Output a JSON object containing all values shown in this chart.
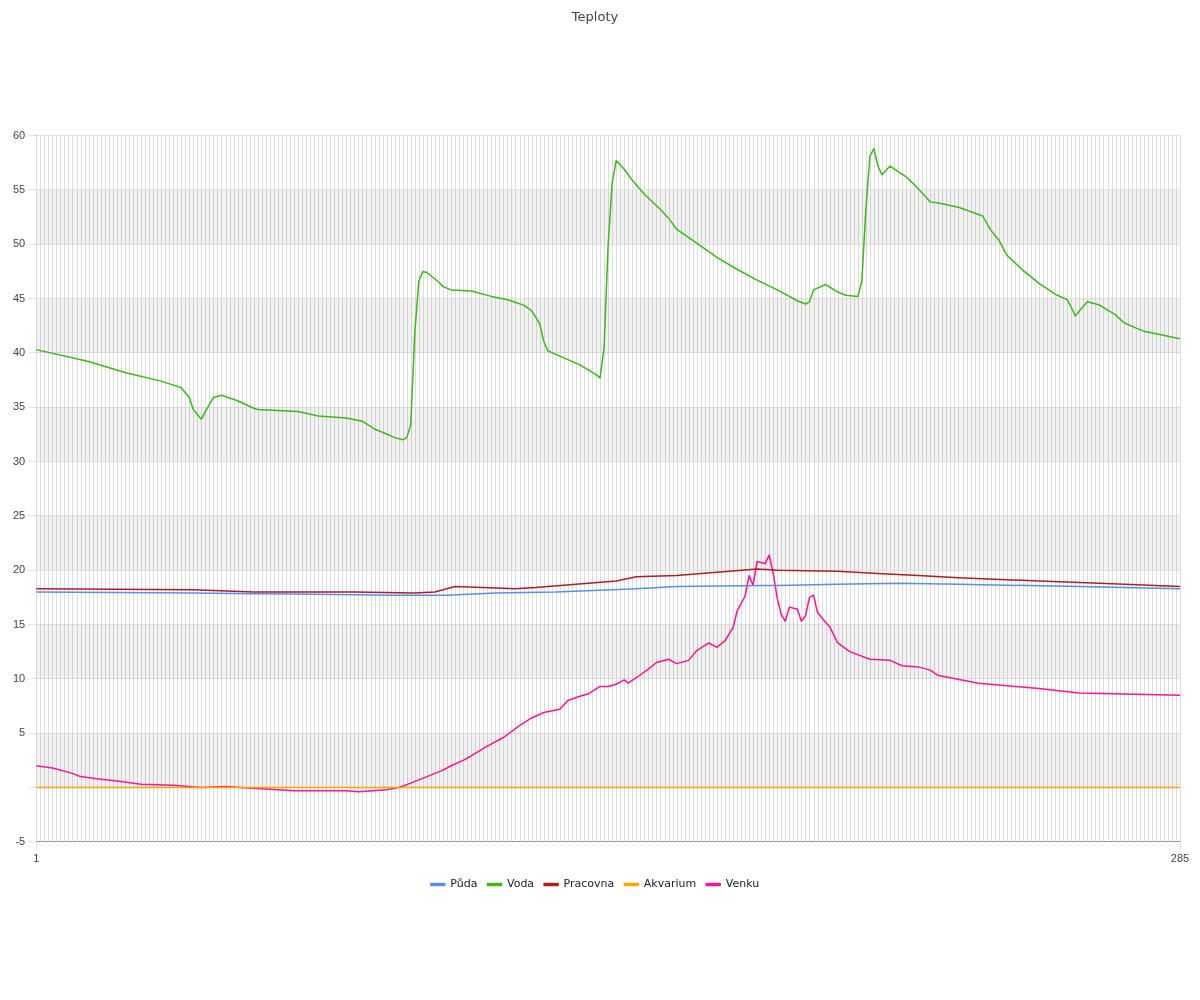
{
  "chart_data": {
    "type": "line",
    "title": "Teploty",
    "xlim": [
      1,
      285
    ],
    "xticks": [
      1,
      285
    ],
    "ylim": [
      -5,
      60
    ],
    "yticks": [
      -5,
      {
        "value": 0,
        "label": null
      },
      5,
      10,
      15,
      20,
      25,
      30,
      35,
      40,
      45,
      50,
      55,
      60
    ],
    "grid": true,
    "legend": "bottom",
    "marker": "none",
    "line_style": "solid",
    "series": [
      {
        "name": "Půda",
        "color": "#5b8fe6",
        "x": [
          1,
          40,
          65,
          90,
          103,
          115,
          130,
          150,
          160,
          185,
          200,
          215,
          230,
          260,
          285
        ],
        "values": [
          18.0,
          17.9,
          17.8,
          17.7,
          17.7,
          17.9,
          18.0,
          18.3,
          18.5,
          18.6,
          18.7,
          18.8,
          18.7,
          18.5,
          18.3
        ]
      },
      {
        "name": "Voda",
        "color": "#3cb81b",
        "x": [
          1,
          14,
          23,
          32,
          37,
          39,
          40,
          42,
          43,
          45,
          47,
          51,
          55,
          56,
          66,
          71,
          78,
          82,
          85,
          87,
          90,
          92,
          93,
          94,
          95,
          96,
          97,
          98,
          100,
          101,
          102,
          104,
          109,
          114,
          118,
          122,
          124,
          126,
          127,
          128,
          131,
          136,
          140,
          141,
          142,
          143,
          144,
          145,
          147,
          149,
          152,
          156,
          158,
          160,
          165,
          170,
          175,
          180,
          185,
          190,
          192,
          193,
          194,
          197,
          200,
          202,
          205,
          206,
          207,
          208,
          209,
          210,
          211,
          213,
          217,
          219,
          222,
          223,
          225,
          230,
          236,
          238,
          240,
          242,
          246,
          250,
          254,
          257,
          258,
          259,
          261,
          262,
          265,
          269,
          271,
          274,
          276,
          280,
          285
        ],
        "values": [
          40.3,
          39.2,
          38.2,
          37.4,
          36.8,
          35.9,
          34.8,
          33.9,
          34.6,
          35.9,
          36.1,
          35.6,
          34.9,
          34.8,
          34.6,
          34.2,
          34.0,
          33.7,
          33.0,
          32.7,
          32.2,
          32.0,
          32.2,
          33.4,
          41.9,
          46.6,
          47.5,
          47.4,
          46.8,
          46.5,
          46.1,
          45.8,
          45.7,
          45.2,
          44.9,
          44.4,
          43.9,
          42.7,
          41.1,
          40.2,
          39.7,
          38.9,
          38.0,
          37.7,
          40.5,
          49.9,
          55.6,
          57.7,
          56.9,
          55.9,
          54.6,
          53.2,
          52.4,
          51.4,
          50.1,
          48.8,
          47.7,
          46.7,
          45.8,
          44.8,
          44.5,
          44.7,
          45.8,
          46.3,
          45.6,
          45.3,
          45.2,
          46.6,
          53.2,
          58.1,
          58.8,
          57.2,
          56.4,
          57.2,
          56.2,
          55.5,
          54.3,
          53.9,
          53.8,
          53.4,
          52.6,
          51.3,
          50.4,
          49.0,
          47.6,
          46.4,
          45.4,
          44.9,
          44.2,
          43.4,
          44.3,
          44.7,
          44.4,
          43.5,
          42.8,
          42.3,
          42.0,
          41.7,
          41.3
        ]
      },
      {
        "name": "Pracovna",
        "color": "#b01e23",
        "x": [
          1,
          40,
          55,
          80,
          95,
          100,
          105,
          120,
          125,
          135,
          145,
          150,
          160,
          170,
          180,
          185,
          200,
          210,
          220,
          230,
          250,
          265,
          285
        ],
        "values": [
          18.3,
          18.2,
          18.0,
          18.0,
          17.9,
          18.0,
          18.5,
          18.3,
          18.4,
          18.7,
          19.0,
          19.4,
          19.5,
          19.8,
          20.1,
          20.0,
          19.9,
          19.7,
          19.5,
          19.3,
          19.0,
          18.8,
          18.5
        ]
      },
      {
        "name": "Akvarium",
        "color": "#ffa500",
        "x": [
          1,
          285
        ],
        "values": [
          0,
          0
        ]
      },
      {
        "name": "Venku",
        "color": "#ff1493",
        "x": [
          1,
          5,
          10,
          12,
          16,
          21,
          27,
          35,
          42,
          48,
          56,
          65,
          78,
          81,
          88,
          91,
          94,
          98,
          102,
          104,
          107,
          109,
          113,
          117,
          121,
          124,
          127,
          131,
          133,
          136,
          138,
          141,
          143,
          145,
          147,
          148,
          150,
          153,
          155,
          158,
          160,
          163,
          165,
          168,
          170,
          172,
          174,
          175,
          177,
          178,
          179,
          180,
          182,
          183,
          184,
          185,
          186,
          187,
          188,
          190,
          191,
          192,
          193,
          194,
          195,
          197,
          198,
          200,
          203,
          208,
          213,
          216,
          220,
          223,
          225,
          235,
          250,
          260,
          271,
          285
        ],
        "values": [
          2.0,
          1.8,
          1.3,
          1.0,
          0.8,
          0.6,
          0.3,
          0.2,
          0,
          0.1,
          -0.1,
          -0.3,
          -0.3,
          -0.4,
          -0.2,
          0,
          0.4,
          1.0,
          1.6,
          2.0,
          2.5,
          2.9,
          3.8,
          4.6,
          5.7,
          6.4,
          6.9,
          7.2,
          8.0,
          8.4,
          8.6,
          9.3,
          9.3,
          9.5,
          9.9,
          9.6,
          10.1,
          10.9,
          11.5,
          11.8,
          11.4,
          11.7,
          12.6,
          13.3,
          12.9,
          13.5,
          14.7,
          16.2,
          17.6,
          19.5,
          18.6,
          20.8,
          20.6,
          21.4,
          19.7,
          17.4,
          15.9,
          15.3,
          16.6,
          16.4,
          15.3,
          15.8,
          17.5,
          17.7,
          16.1,
          15.2,
          14.8,
          13.3,
          12.5,
          11.8,
          11.7,
          11.2,
          11.1,
          10.8,
          10.3,
          9.6,
          9.1,
          8.7,
          8.6,
          8.5
        ]
      }
    ]
  }
}
